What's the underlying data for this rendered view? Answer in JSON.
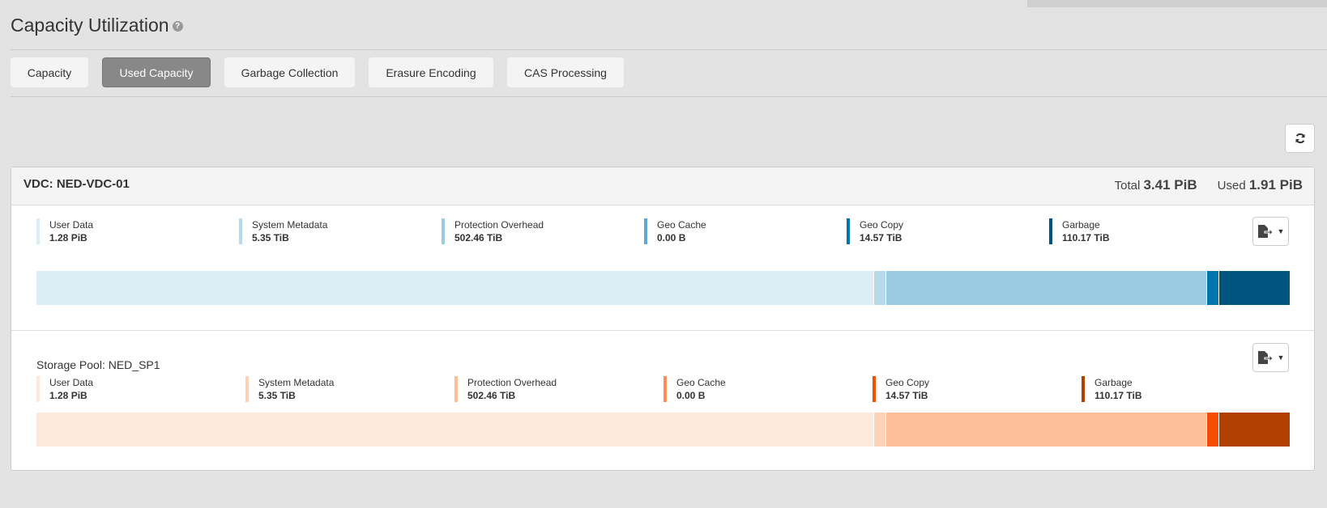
{
  "page": {
    "title": "Capacity Utilization"
  },
  "tabs": [
    {
      "label": "Capacity"
    },
    {
      "label": "Used Capacity",
      "active": true
    },
    {
      "label": "Garbage Collection"
    },
    {
      "label": "Erasure Encoding"
    },
    {
      "label": "CAS Processing"
    }
  ],
  "vdc": {
    "label": "VDC: NED-VDC-01",
    "total_label": "Total",
    "total": "3.41 PiB",
    "used_label": "Used",
    "used": "1.91 PiB",
    "legend": [
      {
        "label": "User Data",
        "value": "1.28 PiB",
        "tib": 1310.72,
        "color": "#ddedf6"
      },
      {
        "label": "System Metadata",
        "value": "5.35 TiB",
        "tib": 5.35,
        "color": "#b8d9ec"
      },
      {
        "label": "Protection Overhead",
        "value": "502.46 TiB",
        "tib": 502.46,
        "color": "#9bcbe1"
      },
      {
        "label": "Geo Cache",
        "value": "0.00 B",
        "tib": 0,
        "color": "#5ea9d3"
      },
      {
        "label": "Geo Copy",
        "value": "14.57 TiB",
        "tib": 14.57,
        "color": "#0075ad"
      },
      {
        "label": "Garbage",
        "value": "110.17 TiB",
        "tib": 110.17,
        "color": "#00557e"
      }
    ]
  },
  "pool": {
    "label": "Storage Pool: NED_SP1",
    "legend": [
      {
        "label": "User Data",
        "value": "1.28 PiB",
        "tib": 1310.72,
        "color": "#fee8db"
      },
      {
        "label": "System Metadata",
        "value": "5.35 TiB",
        "tib": 5.35,
        "color": "#fdd2b6"
      },
      {
        "label": "Protection Overhead",
        "value": "502.46 TiB",
        "tib": 502.46,
        "color": "#fdbf97"
      },
      {
        "label": "Geo Cache",
        "value": "0.00 B",
        "tib": 0,
        "color": "#fc8d59"
      },
      {
        "label": "Geo Copy",
        "value": "14.57 TiB",
        "tib": 14.57,
        "color": "#f54e02"
      },
      {
        "label": "Garbage",
        "value": "110.17 TiB",
        "tib": 110.17,
        "color": "#b24000"
      }
    ]
  }
}
